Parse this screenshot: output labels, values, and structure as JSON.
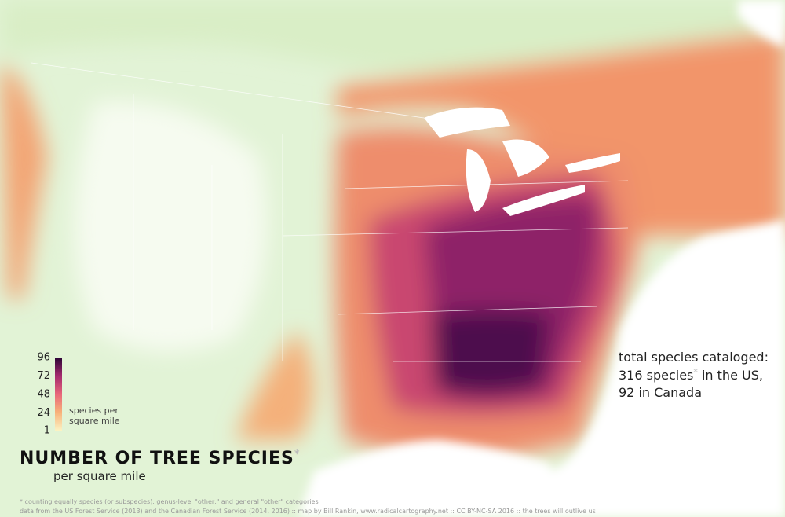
{
  "title": "NUMBER OF TREE SPECIES",
  "title_mark": "*",
  "subtitle": "per square mile",
  "legend": {
    "range": [
      1,
      96
    ],
    "ticks": [
      96,
      72,
      48,
      24,
      1
    ],
    "label_lines": [
      "species per",
      "square mile"
    ],
    "colors": [
      "#fbf3c4",
      "#f8b27a",
      "#e8667a",
      "#a42a6e",
      "#2a0436"
    ]
  },
  "annotation": {
    "line1": "total species cataloged:",
    "line2": [
      "316 species",
      "*",
      " in the US,"
    ],
    "line3": "92 in Canada"
  },
  "footnotes": [
    "* counting equally species (or subspecies), genus-level \"other,\" and general \"other\" categories",
    "data from the US Forest Service (2013) and the Canadian Forest Service (2014, 2016) :: map by Bill Rankin, www.radicalcartography.net :: CC BY-NC-SA 2016 :: the trees will outlive us"
  ]
}
